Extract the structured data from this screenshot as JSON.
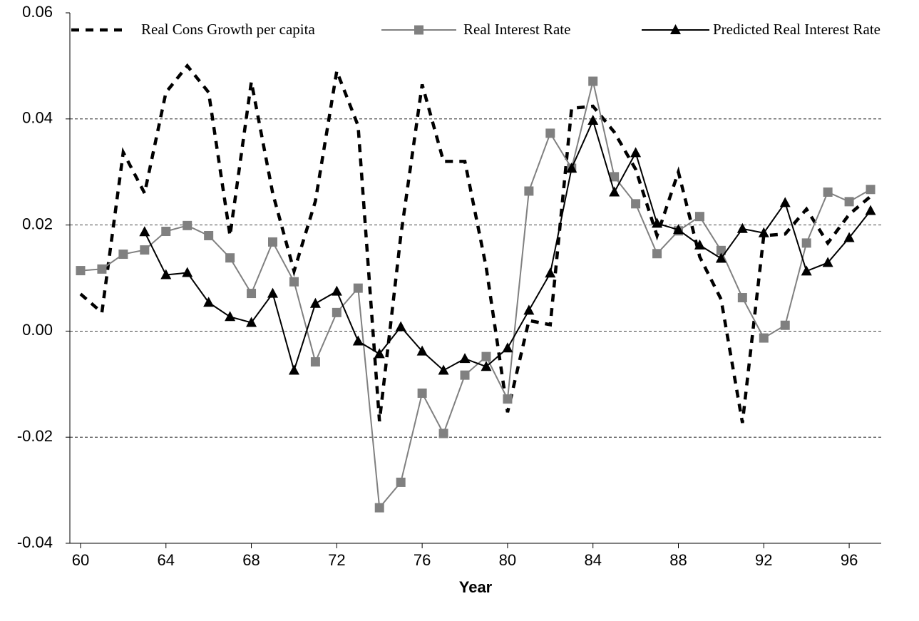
{
  "chart_data": {
    "type": "line",
    "x_label": "Year",
    "x": [
      60,
      61,
      62,
      63,
      64,
      65,
      66,
      67,
      68,
      69,
      70,
      71,
      72,
      73,
      74,
      75,
      76,
      77,
      78,
      79,
      80,
      81,
      82,
      83,
      84,
      85,
      86,
      87,
      88,
      89,
      90,
      91,
      92,
      93,
      94,
      95,
      96,
      97
    ],
    "xlim": [
      59.5,
      97.5
    ],
    "xticks": [
      60,
      64,
      68,
      72,
      76,
      80,
      84,
      88,
      92,
      96
    ],
    "ylim": [
      -0.04,
      0.06
    ],
    "yticks": [
      -0.04,
      -0.02,
      {
        "value": 0,
        "label": "0.00"
      },
      0.02,
      0.04,
      0.06
    ],
    "grid": true,
    "legend": "top",
    "series": [
      {
        "name": "Real Cons Growth per capita",
        "color": "#000000",
        "line_style": "dashed",
        "marker": "none",
        "values": [
          0.007,
          0.0035,
          0.0337,
          0.026,
          0.045,
          0.05,
          0.045,
          0.018,
          0.047,
          0.026,
          0.0113,
          0.0245,
          0.049,
          0.0387,
          -0.017,
          0.018,
          0.0465,
          0.032,
          0.032,
          0.012,
          -0.0153,
          0.002,
          0.0012,
          0.042,
          0.0424,
          0.0375,
          0.0305,
          0.018,
          0.03,
          0.014,
          0.006,
          -0.0173,
          0.018,
          0.0183,
          0.023,
          0.0166,
          0.022,
          0.0254
        ]
      },
      {
        "name": "Real Interest Rate",
        "color": "#808080",
        "line_style": "solid",
        "marker": "square",
        "values": [
          0.0114,
          0.0117,
          0.0145,
          0.0153,
          0.0188,
          0.0199,
          0.018,
          0.0138,
          0.0071,
          0.0168,
          0.0093,
          -0.0058,
          0.0035,
          0.0081,
          -0.0333,
          -0.0285,
          -0.0117,
          -0.0193,
          -0.0083,
          -0.0048,
          -0.0128,
          0.0264,
          0.0373,
          0.0307,
          0.0471,
          0.0291,
          0.024,
          0.0146,
          0.0189,
          0.0216,
          0.0152,
          0.0063,
          -0.0013,
          0.0011,
          0.0166,
          0.0262,
          0.0244,
          0.0267
        ]
      },
      {
        "name": "Predicted Real Interest Rate",
        "color": "#000000",
        "line_style": "solid",
        "marker": "triangle",
        "values": [
          null,
          null,
          null,
          0.0187,
          0.0106,
          0.011,
          0.0054,
          0.0027,
          0.0016,
          0.0071,
          -0.0074,
          0.0052,
          0.0075,
          -0.0019,
          -0.0043,
          0.0008,
          -0.0038,
          -0.0074,
          -0.0052,
          -0.0067,
          -0.0032,
          0.0039,
          0.0109,
          0.0307,
          0.0397,
          0.0262,
          0.0336,
          0.0203,
          0.0191,
          0.0162,
          0.0137,
          0.0193,
          0.0185,
          0.0242,
          0.0113,
          0.0129,
          0.0176,
          0.0227
        ]
      }
    ]
  }
}
